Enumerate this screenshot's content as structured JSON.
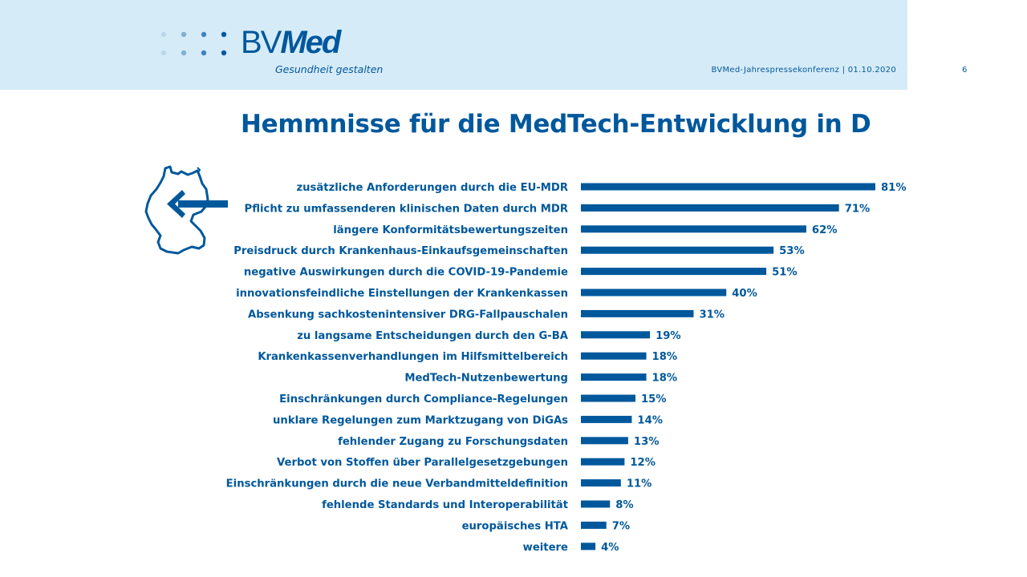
{
  "header": {
    "logo_text_light": "BV",
    "logo_text_bold": "Med",
    "tagline": "Gesundheit gestalten",
    "event": "BVMed-Jahrespressekonferenz | 01.10.2020",
    "page_number": "6",
    "band_color": "#d6ebf8"
  },
  "title": "Hemmnisse für die MedTech-Entwicklung in D",
  "icon": "germany-map-arrow-icon",
  "colors": {
    "accent": "#00589c"
  },
  "chart_data": {
    "type": "bar",
    "orientation": "horizontal",
    "title": "",
    "xlabel": "",
    "ylabel": "",
    "xlim": [
      0,
      81
    ],
    "grid": false,
    "categories": [
      "zusätzliche Anforderungen durch die EU-MDR",
      "Pflicht zu umfassenderen klinischen Daten durch MDR",
      "längere Konformitätsbewertungszeiten",
      "Preisdruck durch Krankenhaus-Einkaufsgemeinschaften",
      "negative Auswirkungen durch die COVID-19-Pandemie",
      "innovationsfeindliche Einstellungen der Krankenkassen",
      "Absenkung sachkostenintensiver DRG-Fallpauschalen",
      "zu langsame Entscheidungen durch den G-BA",
      "Krankenkassenverhandlungen im Hilfsmittelbereich",
      "MedTech-Nutzenbewertung",
      "Einschränkungen durch Compliance-Regelungen",
      "unklare Regelungen zum Marktzugang von DiGAs",
      "fehlender Zugang zu Forschungsdaten",
      "Verbot von Stoffen über Parallelgesetzgebungen",
      "Einschränkungen durch die neue Verbandmitteldefinition",
      "fehlende Standards und Interoperabilität",
      "europäisches HTA",
      "weitere"
    ],
    "values": [
      81,
      71,
      62,
      53,
      51,
      40,
      31,
      19,
      18,
      18,
      15,
      14,
      13,
      12,
      11,
      8,
      7,
      4
    ],
    "value_labels": [
      "81%",
      "71%",
      "62%",
      "53%",
      "51%",
      "40%",
      "31%",
      "19%",
      "18%",
      "18%",
      "15%",
      "14%",
      "13%",
      "12%",
      "11%",
      "8%",
      "7%",
      "4%"
    ],
    "bar_color": "#00589c"
  }
}
